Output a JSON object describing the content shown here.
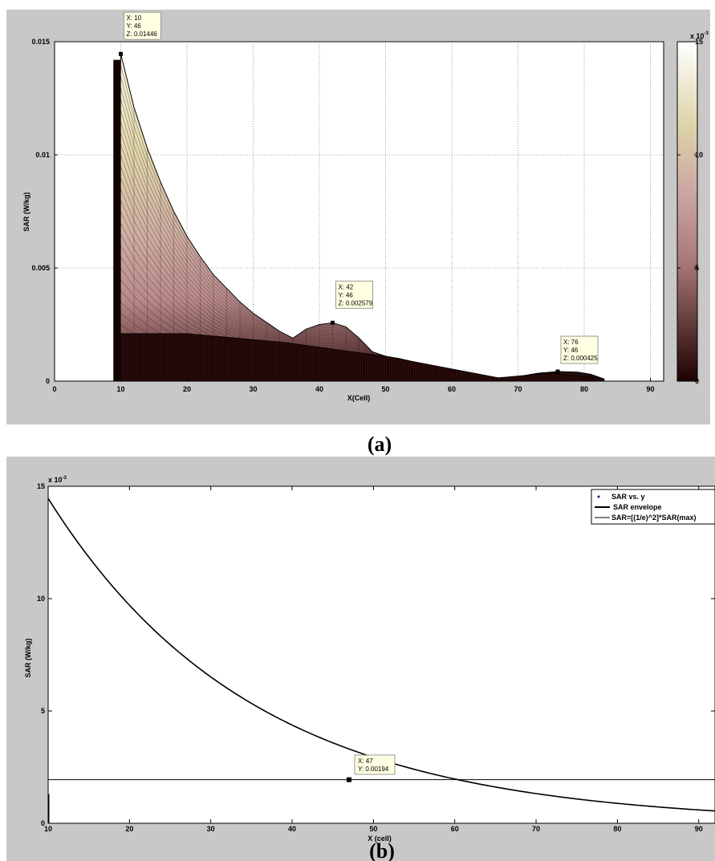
{
  "panels": {
    "a_label": "(a)",
    "b_label": "(b)"
  },
  "chart_data": [
    {
      "type": "surface",
      "panel": "(a)",
      "xlabel": "X(Cell)",
      "ylabel": "SAR (W/kg)",
      "xlim": [
        0,
        92
      ],
      "ylim": [
        0,
        0.015
      ],
      "xticks": [
        0,
        10,
        20,
        30,
        40,
        50,
        60,
        70,
        80,
        90
      ],
      "yticks": [
        "0",
        "0.005",
        "0.01",
        "0.015"
      ],
      "grid": true,
      "colormap": "pink",
      "colorbar": {
        "exponent_label": "x 10",
        "exponent": "-3",
        "ticks": [
          "0",
          "5",
          "10",
          "15"
        ],
        "range": [
          0,
          15
        ]
      },
      "series": [
        {
          "x": [
            9,
            10,
            12,
            14,
            16,
            18,
            20,
            22,
            24,
            26,
            28,
            30,
            32,
            34,
            36,
            38,
            40,
            42,
            44,
            46,
            48,
            50,
            52,
            55,
            58,
            61,
            64,
            67,
            70,
            73,
            76,
            79,
            81,
            83
          ],
          "y": [
            0,
            0.01446,
            0.0121,
            0.0103,
            0.0088,
            0.0075,
            0.0064,
            0.0055,
            0.0047,
            0.0041,
            0.0035,
            0.003,
            0.0026,
            0.0022,
            0.0019,
            0.0023,
            0.0025,
            0.002579,
            0.0024,
            0.0019,
            0.0013,
            0.0011,
            0.001,
            0.0008,
            0.0006,
            0.00045,
            0.0003,
            0.0001,
            0.0002,
            0.00035,
            0.000425,
            0.0004,
            0.0003,
            0.0001
          ]
        }
      ],
      "datatips": [
        {
          "x_text": "X: 10",
          "y_text": "Y: 46",
          "z_text": "Z: 0.01446",
          "x": 10,
          "z": 0.01446
        },
        {
          "x_text": "X: 42",
          "y_text": "Y: 46",
          "z_text": "Z: 0.002579",
          "x": 42,
          "z": 0.002579
        },
        {
          "x_text": "X: 76",
          "y_text": "Y: 46",
          "z_text": "Z: 0.000425",
          "x": 76,
          "z": 0.000425
        }
      ]
    },
    {
      "type": "line",
      "panel": "(b)",
      "xlabel": "X (cell)",
      "ylabel": "SAR (W/kg)",
      "xlim": [
        10,
        92
      ],
      "ylim": [
        0,
        15
      ],
      "y_exponent_label": "x 10",
      "y_exponent": "-3",
      "xticks": [
        10,
        20,
        30,
        40,
        50,
        60,
        70,
        80,
        90
      ],
      "yticks": [
        0,
        5,
        10,
        15
      ],
      "grid": false,
      "legend": {
        "placement": "top-right",
        "entries": [
          "SAR vs. y",
          "SAR envelope",
          "SAR=[(1/e)^2]*SAR(max)"
        ]
      },
      "series": [
        {
          "name": "SAR envelope",
          "x": [
            10,
            15,
            20,
            25,
            30,
            35,
            40,
            45,
            47,
            50,
            55,
            60,
            65,
            70,
            75,
            80,
            85,
            90,
            92
          ],
          "y": [
            14.46,
            11.85,
            9.71,
            7.96,
            6.52,
            5.35,
            4.38,
            3.59,
            1.94,
            2.94,
            2.41,
            1.98,
            1.62,
            1.33,
            1.09,
            0.89,
            0.73,
            0.6,
            0.55
          ]
        },
        {
          "name": "SAR=[(1/e)^2]*SAR(max)",
          "x": [
            10,
            92
          ],
          "y": [
            1.94,
            1.94
          ]
        }
      ],
      "datatip": {
        "x_text": "X: 47",
        "y_text": "Y: 0.00194",
        "x": 47,
        "y": 1.94
      }
    }
  ]
}
